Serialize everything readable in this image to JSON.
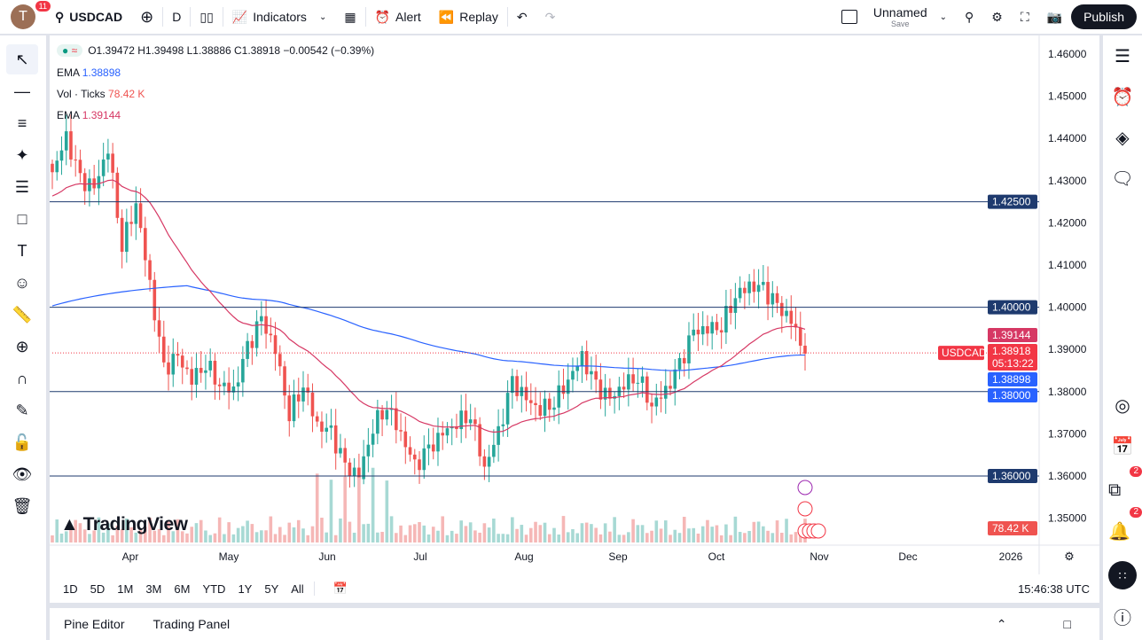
{
  "header": {
    "avatar_letter": "T",
    "notifications": "11",
    "symbol": "USDCAD",
    "interval": "D",
    "indicators": "Indicators",
    "alert": "Alert",
    "replay": "Replay",
    "layout_name": "Unnamed",
    "layout_sub": "Save",
    "publish": "Publish"
  },
  "legend": {
    "ohlc": "O1.39472 H1.39498 L1.38886 C1.38918 −0.00542 (−0.39%)",
    "ema1_label": "EMA",
    "ema1_value": "1.38898",
    "vol_label": "Vol · Ticks",
    "vol_value": "78.42 K",
    "ema2_label": "EMA",
    "ema2_value": "1.39144"
  },
  "price_axis": {
    "ticks": [
      "1.46000",
      "1.45000",
      "1.44000",
      "1.43000",
      "1.42000",
      "1.41000",
      "1.40000",
      "1.39000",
      "1.38000",
      "1.37000",
      "1.36000",
      "1.35000"
    ],
    "labels": {
      "l1": "1.42500",
      "l2": "1.40000",
      "ema2": "1.39144",
      "last": "1.38918",
      "countdown": "05:13:22",
      "ema1": "1.38898",
      "l3": "1.38000",
      "l4": "1.36000",
      "vol": "78.42 K",
      "symbol_tag": "USDCAD"
    }
  },
  "time_axis": [
    "Apr",
    "May",
    "Jun",
    "Jul",
    "Aug",
    "Sep",
    "Oct",
    "Nov",
    "Dec",
    "2026"
  ],
  "ranges": [
    "1D",
    "5D",
    "1M",
    "3M",
    "6M",
    "YTD",
    "1Y",
    "5Y",
    "All"
  ],
  "clock": "15:46:38 UTC",
  "watermark": "TradingView",
  "bottom": {
    "pine": "Pine Editor",
    "trading": "Trading Panel"
  },
  "right_badges": {
    "ideas": "2",
    "notifications": "2"
  },
  "colors": {
    "up": "#26a69a",
    "down": "#ef5350",
    "ema_fast": "#d63864",
    "ema_slow": "#2962ff",
    "hline": "#1e3a6e",
    "last": "#f23645"
  },
  "chart_data": {
    "type": "candlestick",
    "symbol": "USDCAD",
    "interval": "D",
    "horizontal_lines": [
      1.425,
      1.4,
      1.38,
      1.36
    ],
    "last_price": 1.38918,
    "ema_fast": 1.39144,
    "ema_slow": 1.38898,
    "ylim": [
      1.345,
      1.465
    ],
    "closes": [
      1.432,
      1.44,
      1.43,
      1.428,
      1.438,
      1.415,
      1.425,
      1.405,
      1.385,
      1.388,
      1.383,
      1.387,
      1.382,
      1.38,
      1.39,
      1.397,
      1.39,
      1.375,
      1.382,
      1.372,
      1.37,
      1.362,
      1.36,
      1.372,
      1.377,
      1.37,
      1.362,
      1.366,
      1.37,
      1.373,
      1.375,
      1.362,
      1.37,
      1.382,
      1.378,
      1.376,
      1.378,
      1.383,
      1.388,
      1.381,
      1.378,
      1.382,
      1.384,
      1.377,
      1.38,
      1.386,
      1.394,
      1.395,
      1.396,
      1.403,
      1.405,
      1.404,
      1.4,
      1.397,
      1.389
    ]
  }
}
